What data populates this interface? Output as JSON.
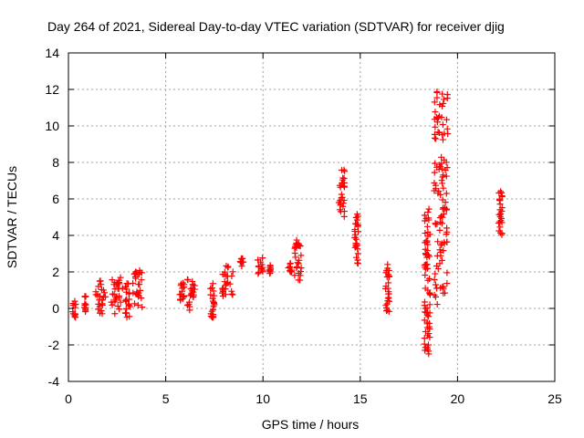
{
  "chart_data": {
    "type": "scatter",
    "title": "Day 264 of 2021, Sidereal Day-to-day VTEC variation (SDTVAR) for receiver djig",
    "xlabel": "GPS time / hours",
    "ylabel": "SDTVAR / TECUs",
    "xlim": [
      0,
      25
    ],
    "ylim": [
      -4,
      14
    ],
    "xticks": [
      0,
      5,
      10,
      15,
      20,
      25
    ],
    "yticks": [
      -4,
      -2,
      0,
      2,
      4,
      6,
      8,
      10,
      12,
      14
    ],
    "grid": true,
    "marker": "+",
    "color": "#ff0000",
    "clusters": [
      {
        "x": [
          0.2,
          0.4
        ],
        "y": [
          -0.7,
          0.4
        ]
      },
      {
        "x": [
          0.8,
          0.9
        ],
        "y": [
          -0.3,
          0.8
        ]
      },
      {
        "x": [
          1.4,
          1.9
        ],
        "y": [
          -0.3,
          1.6
        ]
      },
      {
        "x": [
          2.2,
          2.8
        ],
        "y": [
          -0.3,
          1.7
        ]
      },
      {
        "x": [
          2.9,
          3.2
        ],
        "y": [
          -0.5,
          1.4
        ]
      },
      {
        "x": [
          3.3,
          3.8
        ],
        "y": [
          0.0,
          2.1
        ]
      },
      {
        "x": [
          5.7,
          6.0
        ],
        "y": [
          0.4,
          1.5
        ]
      },
      {
        "x": [
          6.1,
          6.5
        ],
        "y": [
          -0.1,
          1.6
        ]
      },
      {
        "x": [
          7.3,
          7.5
        ],
        "y": [
          -0.6,
          1.4
        ]
      },
      {
        "x": [
          7.9,
          8.5
        ],
        "y": [
          0.6,
          2.4
        ]
      },
      {
        "x": [
          8.8,
          9.0
        ],
        "y": [
          2.3,
          2.8
        ]
      },
      {
        "x": [
          9.7,
          10.0
        ],
        "y": [
          1.9,
          2.8
        ]
      },
      {
        "x": [
          10.3,
          10.4
        ],
        "y": [
          1.9,
          2.4
        ]
      },
      {
        "x": [
          11.3,
          11.5
        ],
        "y": [
          2.0,
          2.6
        ]
      },
      {
        "x": [
          11.6,
          12.0
        ],
        "y": [
          1.5,
          3.8
        ]
      },
      {
        "x": [
          13.9,
          14.2
        ],
        "y": [
          5.0,
          7.6
        ]
      },
      {
        "x": [
          14.7,
          14.9
        ],
        "y": [
          2.3,
          5.3
        ]
      },
      {
        "x": [
          16.3,
          16.5
        ],
        "y": [
          -0.2,
          2.5
        ]
      },
      {
        "x": [
          18.3,
          18.6
        ],
        "y": [
          -2.5,
          5.8
        ]
      },
      {
        "x": [
          18.8,
          19.5
        ],
        "y": [
          0.2,
          12.2
        ]
      },
      {
        "x": [
          22.1,
          22.3
        ],
        "y": [
          3.9,
          6.7
        ]
      }
    ]
  }
}
